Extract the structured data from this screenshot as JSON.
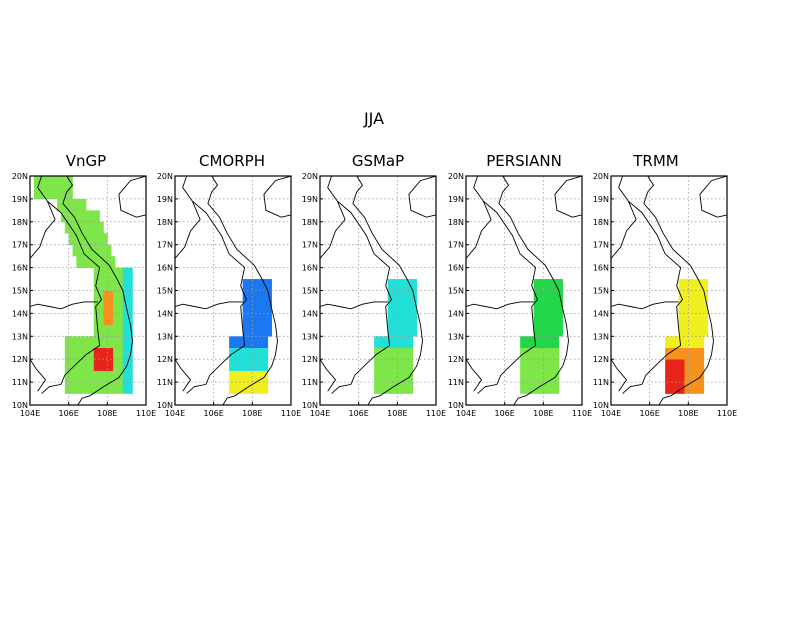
{
  "figure": {
    "title": "JJA"
  },
  "axes": {
    "lat_ticks": [
      "20N",
      "19N",
      "18N",
      "17N",
      "16N",
      "15N",
      "14N",
      "13N",
      "12N",
      "11N",
      "10N"
    ],
    "lon_ticks": [
      "104E",
      "106E",
      "108E",
      "110E"
    ]
  },
  "panels": [
    {
      "name": "VnGP"
    },
    {
      "name": "CMORPH"
    },
    {
      "name": "GSMaP"
    },
    {
      "name": "PERSIANN"
    },
    {
      "name": "TRMM"
    }
  ],
  "colors": {
    "frame": "#000000",
    "grid": "#9a9a9a",
    "coast": "#000000",
    "red": "#e8231a",
    "orange": "#f7921c",
    "yellow": "#f0f020",
    "green": "#22d84a",
    "light_green": "#7fe64a",
    "cyan": "#22e0d8",
    "blue": "#1a78f0",
    "dark_blue": "#0a3fd0"
  }
}
